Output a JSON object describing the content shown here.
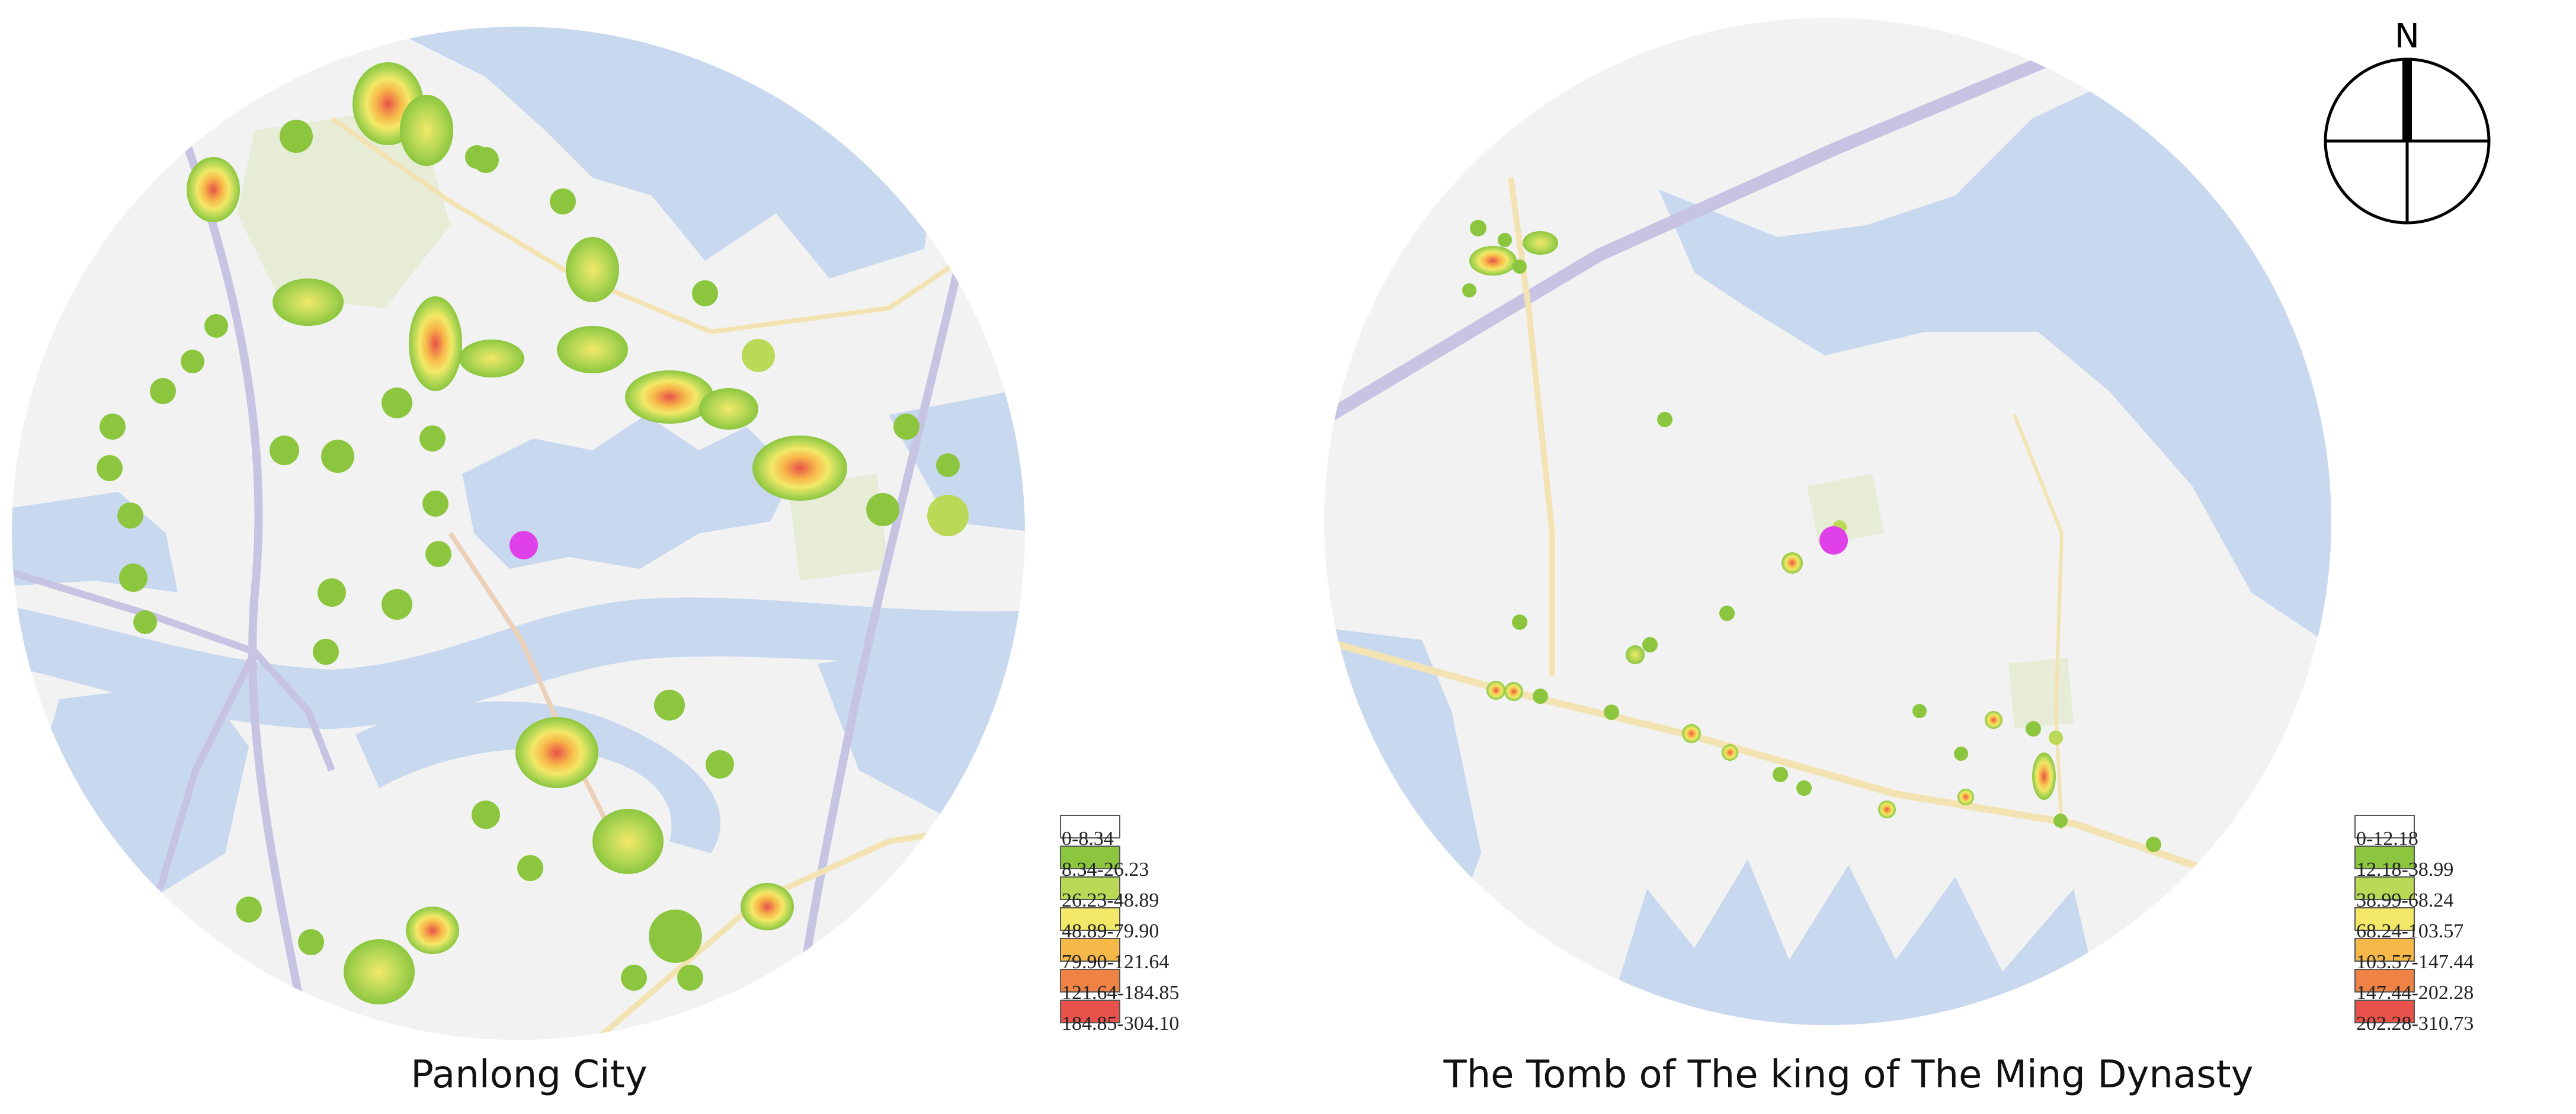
{
  "maps": [
    {
      "title": "Panlong City",
      "legend": [
        {
          "label": "0-8.34",
          "color": "#ffffff"
        },
        {
          "label": "8.34-26.23",
          "color": "#8cc63f"
        },
        {
          "label": "26.23-48.89",
          "color": "#b9d957"
        },
        {
          "label": "48.89-79.90",
          "color": "#f3e867"
        },
        {
          "label": "79.90-121.64",
          "color": "#f7b84a"
        },
        {
          "label": "121.64-184.85",
          "color": "#ef8346"
        },
        {
          "label": "184.85-304.10",
          "color": "#e8524a"
        }
      ]
    },
    {
      "title": "The Tomb of The king of The Ming Dynasty",
      "legend": [
        {
          "label": "0-12.18",
          "color": "#ffffff"
        },
        {
          "label": "12.18-38.99",
          "color": "#8cc63f"
        },
        {
          "label": "38.99-68.24",
          "color": "#b9d957"
        },
        {
          "label": "68.24-103.57",
          "color": "#f3e867"
        },
        {
          "label": "103.57-147.44",
          "color": "#f7b84a"
        },
        {
          "label": "147.44-202.28",
          "color": "#ef8346"
        },
        {
          "label": "202.28-310.73",
          "color": "#e8524a"
        }
      ]
    }
  ],
  "north_arrow": {
    "label": "N"
  },
  "colors": {
    "water": "#c8d8ef",
    "land": "#f2f2f2",
    "site_marker": "#e040e8",
    "heat_low": "#8cc63f",
    "heat_high": "#e8524a"
  }
}
